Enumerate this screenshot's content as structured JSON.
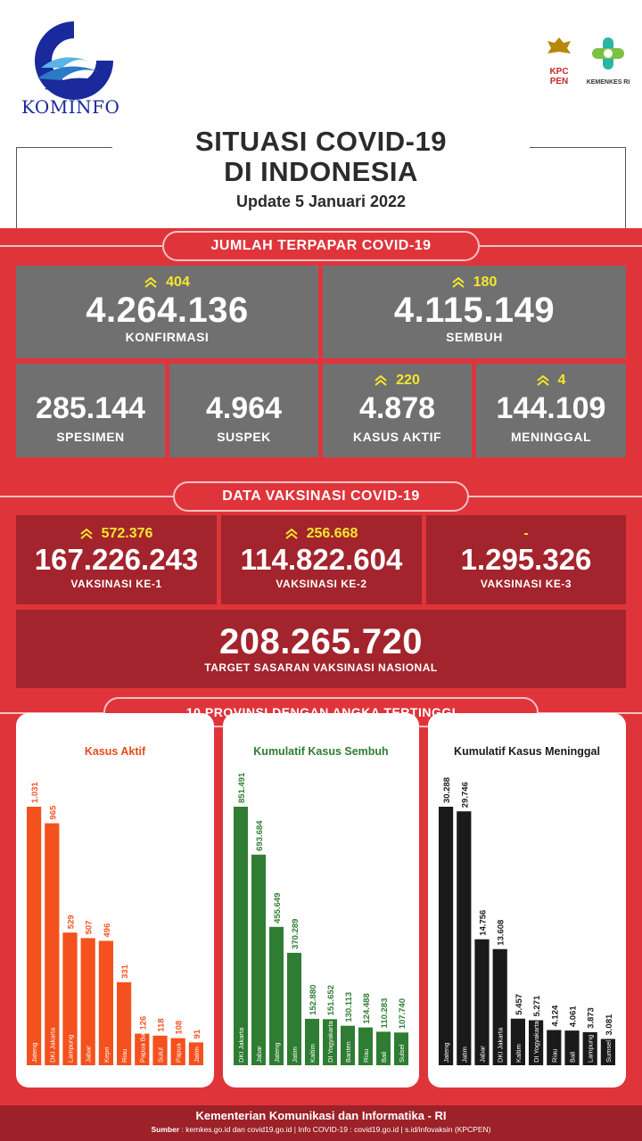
{
  "brand": {
    "logo_text": "KOMINFO",
    "kpc_line1": "KPC",
    "kpc_line2": "PEN",
    "kemenkes": "KEMENKES RI"
  },
  "header": {
    "title_line1": "SITUASI COVID-19",
    "title_line2": "DI INDONESIA",
    "update": "Update 5 Januari 2022"
  },
  "terpapar": {
    "section_title": "JUMLAH TERPAPAR COVID-19",
    "konfirmasi": {
      "increase": "404",
      "value": "4.264.136",
      "label": "KONFIRMASI"
    },
    "sembuh": {
      "increase": "180",
      "value": "4.115.149",
      "label": "SEMBUH"
    },
    "spesimen": {
      "value": "285.144",
      "label": "SPESIMEN"
    },
    "suspek": {
      "value": "4.964",
      "label": "SUSPEK"
    },
    "kasus_aktif": {
      "increase": "220",
      "value": "4.878",
      "label": "KASUS AKTIF"
    },
    "meninggal": {
      "increase": "4",
      "value": "144.109",
      "label": "MENINGGAL"
    }
  },
  "vaksinasi": {
    "section_title": "DATA VAKSINASI COVID-19",
    "ke1": {
      "increase": "572.376",
      "value": "167.226.243",
      "label": "VAKSINASI KE-1"
    },
    "ke2": {
      "increase": "256.668",
      "value": "114.822.604",
      "label": "VAKSINASI KE-2"
    },
    "ke3": {
      "increase": "-",
      "value": "1.295.326",
      "label": "VAKSINASI KE-3"
    },
    "target": {
      "value": "208.265.720",
      "label": "TARGET SASARAN VAKSINASI NASIONAL"
    }
  },
  "provinsi": {
    "section_title": "10 PROVINSI DENGAN ANGKA TERTINGGI"
  },
  "colors": {
    "red": "#e0343b",
    "dark_red": "#a3242c",
    "gray": "#707070",
    "orange": "#f4511e",
    "green": "#2e7d32",
    "black": "#1a1a1a",
    "yellow": "#f5e72a"
  },
  "chart_data": [
    {
      "type": "bar",
      "title": "Kasus Aktif",
      "categories": [
        "Jateng",
        "DKI Jakarta",
        "Lampung",
        "Jabar",
        "Kepri",
        "Riau",
        "Papua Barat",
        "Sulut",
        "Papua",
        "Jatim"
      ],
      "values": [
        1031,
        965,
        529,
        507,
        496,
        331,
        126,
        118,
        108,
        91
      ],
      "value_labels": [
        "1.031",
        "965",
        "529",
        "507",
        "496",
        "331",
        "126",
        "118",
        "108",
        "91"
      ],
      "color": "#f4511e"
    },
    {
      "type": "bar",
      "title": "Kumulatif Kasus Sembuh",
      "categories": [
        "DKI Jakarta",
        "Jabar",
        "Jateng",
        "Jatim",
        "Kaltim",
        "DI Yogyakarta",
        "Banten",
        "Riau",
        "Bali",
        "Sulsel"
      ],
      "values": [
        851491,
        693684,
        455649,
        370289,
        152880,
        151652,
        130113,
        124488,
        110283,
        107740
      ],
      "value_labels": [
        "851.491",
        "693.684",
        "455.649",
        "370.289",
        "152.880",
        "151.652",
        "130.113",
        "124.488",
        "110.283",
        "107.740"
      ],
      "color": "#2e7d32"
    },
    {
      "type": "bar",
      "title": "Kumulatif Kasus Meninggal",
      "categories": [
        "Jateng",
        "Jatim",
        "Jabar",
        "DKI Jakarta",
        "Kaltim",
        "DI Yogyakarta",
        "Riau",
        "Bali",
        "Lampung",
        "Sumsel"
      ],
      "values": [
        30288,
        29746,
        14756,
        13608,
        5457,
        5271,
        4124,
        4061,
        3873,
        3081
      ],
      "value_labels": [
        "30.288",
        "29.746",
        "14.756",
        "13.608",
        "5.457",
        "5.271",
        "4.124",
        "4.061",
        "3.873",
        "3.081"
      ],
      "color": "#1a1a1a"
    }
  ],
  "footer": {
    "title": "Kementerian Komunikasi dan Informatika - RI",
    "source_label": "Sumber",
    "source": " : kemkes.go.id dan covid19.go.id | Info COVID-19 : covid19.go.id | s.id/infovaksin (KPCPEN)"
  }
}
